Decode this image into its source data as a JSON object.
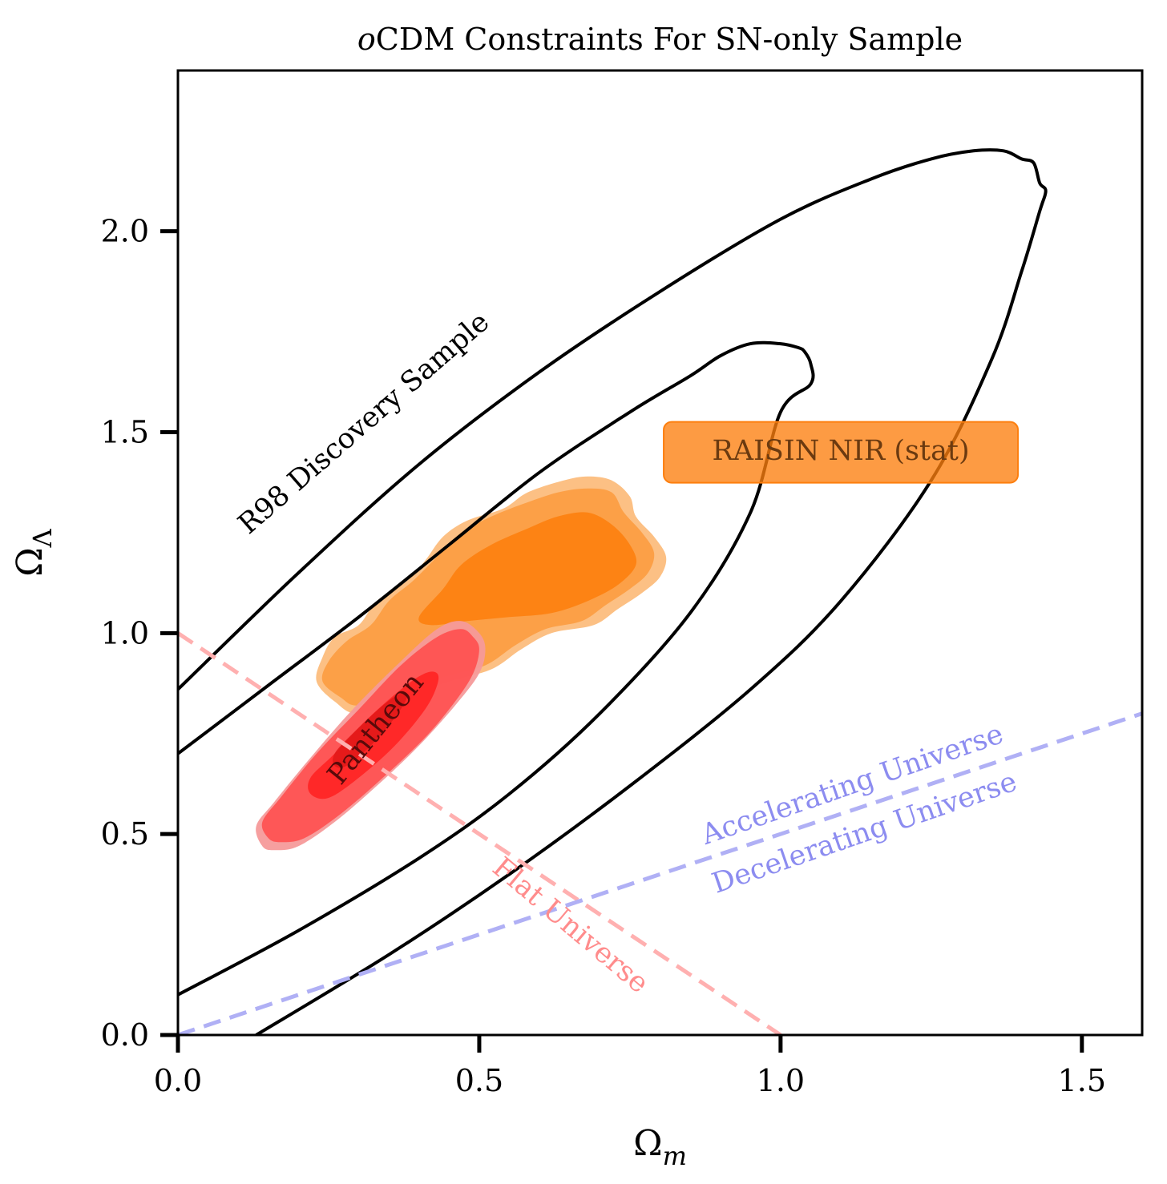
{
  "chart_data": {
    "type": "contour",
    "title_italic": "o",
    "title_rest": "CDM Constraints For SN-only Sample",
    "xlabel": "Ωm",
    "xlabel_main": "Ω",
    "xlabel_sub": "m",
    "ylabel": "ΩΛ",
    "ylabel_main": "Ω",
    "ylabel_sub": "Λ",
    "xlim": [
      0.0,
      1.6
    ],
    "ylim": [
      0.0,
      2.4
    ],
    "xticks": [
      0.0,
      0.5,
      1.0,
      1.5
    ],
    "xtick_labels": [
      "0.0",
      "0.5",
      "1.0",
      "1.5"
    ],
    "yticks": [
      0.0,
      0.5,
      1.0,
      1.5,
      2.0
    ],
    "ytick_labels": [
      "0.0",
      "0.5",
      "1.0",
      "1.5",
      "2.0"
    ],
    "colors": {
      "r98": "#000000",
      "raisin_outer": "#fbb56e",
      "raisin_mid": "#fb9a3c",
      "raisin_inner": "#fd7f0e",
      "pantheon_outer": "#f59a9a",
      "pantheon_mid": "#ff4a4a",
      "pantheon_inner": "#ff2020",
      "pantheon_core": "#e01818",
      "flat_line": "#ffb0b0",
      "accel_line": "#b0b0f5",
      "accel_text": "#8c8cf0",
      "flat_text": "#ff8c8c"
    },
    "series": [
      {
        "name": "R98 Discovery Sample",
        "kind": "line_contour",
        "levels": [
          {
            "level": "outer",
            "points": [
              [
                0.13,
                0.0
              ],
              [
                0.35,
                0.2
              ],
              [
                0.55,
                0.4
              ],
              [
                0.75,
                0.62
              ],
              [
                0.95,
                0.86
              ],
              [
                1.1,
                1.08
              ],
              [
                1.25,
                1.38
              ],
              [
                1.35,
                1.68
              ],
              [
                1.4,
                1.9
              ],
              [
                1.43,
                2.05
              ],
              [
                1.44,
                2.1
              ],
              [
                1.43,
                2.12
              ],
              [
                1.42,
                2.17
              ],
              [
                1.4,
                2.18
              ],
              [
                1.37,
                2.2
              ],
              [
                1.32,
                2.2
              ],
              [
                1.25,
                2.18
              ],
              [
                1.15,
                2.13
              ],
              [
                1.0,
                2.03
              ],
              [
                0.8,
                1.85
              ],
              [
                0.6,
                1.65
              ],
              [
                0.4,
                1.42
              ],
              [
                0.2,
                1.15
              ],
              [
                0.0,
                0.86
              ]
            ]
          },
          {
            "level": "inner",
            "points": [
              [
                0.0,
                0.1
              ],
              [
                0.2,
                0.26
              ],
              [
                0.4,
                0.44
              ],
              [
                0.55,
                0.6
              ],
              [
                0.7,
                0.8
              ],
              [
                0.85,
                1.05
              ],
              [
                0.95,
                1.3
              ],
              [
                1.0,
                1.55
              ],
              [
                1.05,
                1.62
              ],
              [
                1.05,
                1.67
              ],
              [
                1.04,
                1.7
              ],
              [
                1.03,
                1.71
              ],
              [
                1.0,
                1.72
              ],
              [
                0.95,
                1.72
              ],
              [
                0.9,
                1.69
              ],
              [
                0.85,
                1.64
              ],
              [
                0.75,
                1.55
              ],
              [
                0.6,
                1.4
              ],
              [
                0.45,
                1.22
              ],
              [
                0.3,
                1.04
              ],
              [
                0.15,
                0.87
              ],
              [
                0.0,
                0.7
              ]
            ]
          }
        ]
      },
      {
        "name": "RAISIN NIR (stat)",
        "kind": "filled_contour",
        "levels": [
          {
            "level": "outer",
            "points": [
              [
                0.23,
                0.88
              ],
              [
                0.24,
                0.94
              ],
              [
                0.26,
                0.99
              ],
              [
                0.3,
                1.02
              ],
              [
                0.33,
                1.08
              ],
              [
                0.38,
                1.13
              ],
              [
                0.41,
                1.18
              ],
              [
                0.44,
                1.24
              ],
              [
                0.48,
                1.28
              ],
              [
                0.54,
                1.31
              ],
              [
                0.58,
                1.35
              ],
              [
                0.64,
                1.38
              ],
              [
                0.68,
                1.39
              ],
              [
                0.72,
                1.38
              ],
              [
                0.75,
                1.34
              ],
              [
                0.76,
                1.29
              ],
              [
                0.79,
                1.24
              ],
              [
                0.81,
                1.19
              ],
              [
                0.8,
                1.14
              ],
              [
                0.77,
                1.1
              ],
              [
                0.73,
                1.06
              ],
              [
                0.69,
                1.02
              ],
              [
                0.62,
                1.0
              ],
              [
                0.57,
                0.96
              ],
              [
                0.52,
                0.91
              ],
              [
                0.45,
                0.88
              ],
              [
                0.38,
                0.84
              ],
              [
                0.3,
                0.8
              ],
              [
                0.26,
                0.83
              ]
            ]
          },
          {
            "level": "mid",
            "points": [
              [
                0.24,
                0.88
              ],
              [
                0.25,
                0.93
              ],
              [
                0.28,
                0.98
              ],
              [
                0.32,
                1.02
              ],
              [
                0.35,
                1.08
              ],
              [
                0.39,
                1.13
              ],
              [
                0.43,
                1.19
              ],
              [
                0.47,
                1.25
              ],
              [
                0.52,
                1.29
              ],
              [
                0.57,
                1.32
              ],
              [
                0.63,
                1.35
              ],
              [
                0.68,
                1.36
              ],
              [
                0.72,
                1.35
              ],
              [
                0.74,
                1.3
              ],
              [
                0.77,
                1.25
              ],
              [
                0.79,
                1.2
              ],
              [
                0.78,
                1.15
              ],
              [
                0.75,
                1.11
              ],
              [
                0.71,
                1.07
              ],
              [
                0.67,
                1.03
              ],
              [
                0.61,
                1.01
              ],
              [
                0.56,
                0.97
              ],
              [
                0.51,
                0.92
              ],
              [
                0.44,
                0.89
              ],
              [
                0.37,
                0.85
              ],
              [
                0.3,
                0.82
              ],
              [
                0.27,
                0.84
              ]
            ]
          },
          {
            "level": "inner",
            "points": [
              [
                0.4,
                1.04
              ],
              [
                0.44,
                1.11
              ],
              [
                0.47,
                1.17
              ],
              [
                0.52,
                1.22
              ],
              [
                0.58,
                1.26
              ],
              [
                0.63,
                1.29
              ],
              [
                0.68,
                1.3
              ],
              [
                0.72,
                1.27
              ],
              [
                0.75,
                1.22
              ],
              [
                0.76,
                1.17
              ],
              [
                0.73,
                1.12
              ],
              [
                0.68,
                1.08
              ],
              [
                0.62,
                1.05
              ],
              [
                0.55,
                1.04
              ],
              [
                0.48,
                1.03
              ],
              [
                0.42,
                1.02
              ]
            ]
          }
        ]
      },
      {
        "name": "Pantheon",
        "kind": "filled_contour",
        "levels": [
          {
            "level": "outer",
            "points": [
              [
                0.14,
                0.47
              ],
              [
                0.16,
                0.46
              ],
              [
                0.2,
                0.47
              ],
              [
                0.26,
                0.53
              ],
              [
                0.33,
                0.62
              ],
              [
                0.4,
                0.72
              ],
              [
                0.46,
                0.82
              ],
              [
                0.5,
                0.9
              ],
              [
                0.51,
                0.96
              ],
              [
                0.5,
                1.0
              ],
              [
                0.47,
                1.03
              ],
              [
                0.43,
                1.01
              ],
              [
                0.37,
                0.93
              ],
              [
                0.29,
                0.81
              ],
              [
                0.22,
                0.69
              ],
              [
                0.16,
                0.58
              ],
              [
                0.13,
                0.52
              ]
            ]
          },
          {
            "level": "mid",
            "points": [
              [
                0.15,
                0.49
              ],
              [
                0.17,
                0.48
              ],
              [
                0.21,
                0.49
              ],
              [
                0.27,
                0.55
              ],
              [
                0.34,
                0.64
              ],
              [
                0.41,
                0.74
              ],
              [
                0.46,
                0.83
              ],
              [
                0.49,
                0.9
              ],
              [
                0.5,
                0.96
              ],
              [
                0.49,
                0.99
              ],
              [
                0.47,
                1.01
              ],
              [
                0.43,
                0.99
              ],
              [
                0.37,
                0.92
              ],
              [
                0.3,
                0.81
              ],
              [
                0.23,
                0.7
              ],
              [
                0.17,
                0.59
              ],
              [
                0.14,
                0.53
              ]
            ]
          },
          {
            "level": "inner",
            "points": [
              [
                0.22,
                0.6
              ],
              [
                0.25,
                0.59
              ],
              [
                0.3,
                0.64
              ],
              [
                0.36,
                0.72
              ],
              [
                0.41,
                0.81
              ],
              [
                0.43,
                0.87
              ],
              [
                0.43,
                0.9
              ],
              [
                0.41,
                0.9
              ],
              [
                0.37,
                0.86
              ],
              [
                0.31,
                0.78
              ],
              [
                0.26,
                0.7
              ],
              [
                0.22,
                0.64
              ]
            ]
          },
          {
            "level": "core",
            "points": [
              [
                0.26,
                0.67
              ],
              [
                0.28,
                0.67
              ],
              [
                0.32,
                0.72
              ],
              [
                0.36,
                0.79
              ],
              [
                0.38,
                0.84
              ],
              [
                0.37,
                0.85
              ],
              [
                0.34,
                0.82
              ],
              [
                0.29,
                0.75
              ],
              [
                0.26,
                0.7
              ]
            ]
          }
        ]
      },
      {
        "name": "Flat Universe",
        "kind": "dashed_line",
        "points": [
          [
            0.0,
            1.0
          ],
          [
            1.0,
            0.0
          ]
        ]
      },
      {
        "name": "Accelerating Universe / Decelerating Universe",
        "kind": "dashed_line",
        "points": [
          [
            0.0,
            0.0
          ],
          [
            1.6,
            0.8
          ]
        ]
      }
    ],
    "annotations": [
      {
        "text": "R98 Discovery Sample",
        "x": 0.31,
        "y": 1.52,
        "angle": -41
      },
      {
        "text": "RAISIN NIR (stat)",
        "x": 1.1,
        "y": 1.45,
        "angle": 0,
        "boxed": true
      },
      {
        "text": "Pantheon",
        "x": 0.33,
        "y": 0.76,
        "angle": -51
      },
      {
        "text": "Flat Universe",
        "x": 0.65,
        "y": 0.27,
        "angle": 40
      },
      {
        "text": "Accelerating Universe",
        "x": 1.12,
        "y": 0.62,
        "angle": -19
      },
      {
        "text": "Decelerating Universe",
        "x": 1.14,
        "y": 0.5,
        "angle": -19
      }
    ]
  }
}
